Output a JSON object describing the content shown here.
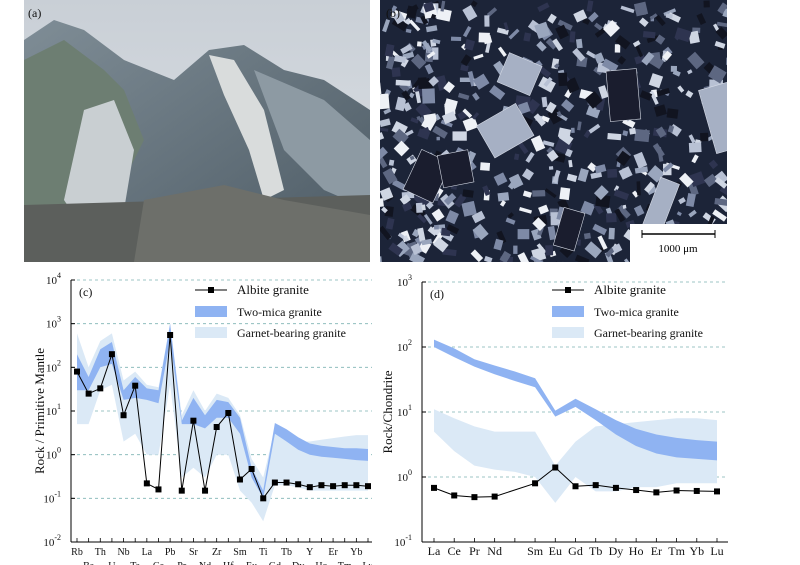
{
  "panels": {
    "a": {
      "label": "(a)"
    },
    "b": {
      "label": "(b)",
      "scale_bar": "1000 μm"
    }
  },
  "colors": {
    "two_mica_band": "#8fb3f2",
    "garnet_band": "#dbe9f6",
    "albite_line": "#000000",
    "grid": "#7fb4b4"
  },
  "chart_data": [
    {
      "id": "c",
      "type": "line",
      "panel_label": "(c)",
      "ylabel": "Rock / Primitive Mantle",
      "xlabel": "",
      "yscale": "log",
      "ylim": [
        0.01,
        10000
      ],
      "grid": true,
      "legend_position": "top-right",
      "categories": [
        "Rb",
        "Ba",
        "Th",
        "U",
        "Nb",
        "Ta",
        "La",
        "Ce",
        "Pb",
        "Pr",
        "Sr",
        "Nd",
        "Zr",
        "Hf",
        "Sm",
        "Eu",
        "Ti",
        "Gd",
        "Tb",
        "Dy",
        "Y",
        "Ho",
        "Er",
        "Tm",
        "Yb",
        "Lu"
      ],
      "y_ticks": [
        {
          "value": 0.01,
          "base": "10",
          "exp": "-2"
        },
        {
          "value": 0.1,
          "base": "10",
          "exp": "-1"
        },
        {
          "value": 1,
          "base": "10",
          "exp": "0"
        },
        {
          "value": 10,
          "base": "10",
          "exp": "1"
        },
        {
          "value": 100,
          "base": "10",
          "exp": "2"
        },
        {
          "value": 1000,
          "base": "10",
          "exp": "3"
        },
        {
          "value": 10000,
          "base": "10",
          "exp": "4"
        }
      ],
      "series": [
        {
          "name": "Albite granite",
          "kind": "line-marker",
          "values": [
            80,
            25,
            33,
            200,
            8,
            38,
            0.22,
            0.16,
            550,
            0.15,
            6,
            0.15,
            4.3,
            9,
            0.27,
            0.47,
            0.1,
            0.23,
            0.23,
            0.21,
            0.18,
            0.2,
            0.19,
            0.2,
            0.2,
            0.19
          ]
        },
        {
          "name": "Two-mica granite",
          "kind": "band",
          "lower": [
            30,
            30,
            100,
            120,
            18,
            20,
            18,
            15,
            400,
            5,
            5,
            4,
            7,
            7,
            3,
            0.3,
            0.1,
            3,
            2,
            1.3,
            1,
            0.9,
            0.85,
            0.8,
            0.75,
            0.72
          ],
          "upper": [
            200,
            60,
            260,
            380,
            30,
            60,
            33,
            30,
            1000,
            6,
            20,
            8,
            18,
            16,
            7,
            0.5,
            0.15,
            5.3,
            3.8,
            2.5,
            1.8,
            1.6,
            1.5,
            1.4,
            1.4,
            1.35
          ]
        },
        {
          "name": "Garnet-bearing granite",
          "kind": "band",
          "lower": [
            5,
            5,
            30,
            40,
            2,
            3,
            1,
            1,
            40,
            0.3,
            0.5,
            0.3,
            1,
            1,
            0.15,
            0.08,
            0.03,
            0.2,
            0.2,
            0.18,
            0.15,
            0.15,
            0.15,
            0.15,
            0.15,
            0.15
          ],
          "upper": [
            600,
            100,
            400,
            600,
            50,
            80,
            40,
            35,
            1000,
            8,
            30,
            10,
            25,
            20,
            8,
            0.8,
            0.3,
            4,
            3,
            2,
            2,
            2.2,
            2.4,
            2.6,
            2.8,
            2.8
          ]
        }
      ]
    },
    {
      "id": "d",
      "type": "line",
      "panel_label": "(d)",
      "ylabel": "Rock/Chondrite",
      "xlabel": "",
      "yscale": "log",
      "ylim": [
        0.1,
        1000
      ],
      "grid": true,
      "legend_position": "top-right",
      "categories": [
        "La",
        "Ce",
        "Pr",
        "Nd",
        "",
        "Sm",
        "Eu",
        "Gd",
        "Tb",
        "Dy",
        "Ho",
        "Er",
        "Tm",
        "Yb",
        "Lu"
      ],
      "y_ticks": [
        {
          "value": 0.1,
          "base": "10",
          "exp": "-1"
        },
        {
          "value": 1,
          "base": "10",
          "exp": "0"
        },
        {
          "value": 10,
          "base": "10",
          "exp": "1"
        },
        {
          "value": 100,
          "base": "10",
          "exp": "2"
        },
        {
          "value": 1000,
          "base": "10",
          "exp": "3"
        }
      ],
      "series": [
        {
          "name": "Albite granite",
          "kind": "line-marker",
          "values": [
            0.68,
            0.52,
            0.49,
            0.5,
            null,
            0.8,
            1.4,
            0.72,
            0.75,
            0.68,
            0.63,
            0.58,
            0.62,
            0.61,
            0.6
          ]
        },
        {
          "name": "Two-mica granite",
          "kind": "band",
          "lower": [
            100,
            70,
            50,
            38,
            30,
            24,
            8.5,
            12,
            7.5,
            4.5,
            3,
            2.3,
            2,
            1.9,
            1.8
          ],
          "upper": [
            130,
            95,
            65,
            52,
            42,
            33,
            10.5,
            16,
            11,
            7.5,
            5.5,
            4.5,
            4,
            3.7,
            3.5
          ]
        },
        {
          "name": "Garnet-bearing granite",
          "kind": "band",
          "lower": [
            5,
            2.5,
            1.5,
            1.3,
            1.2,
            1,
            0.4,
            1,
            0.6,
            0.6,
            0.7,
            0.7,
            0.8,
            0.8,
            0.8
          ],
          "upper": [
            11,
            8,
            6,
            5,
            5,
            5,
            1.5,
            3.5,
            6,
            6.5,
            7,
            7.5,
            8,
            8,
            7.5
          ]
        }
      ]
    }
  ]
}
